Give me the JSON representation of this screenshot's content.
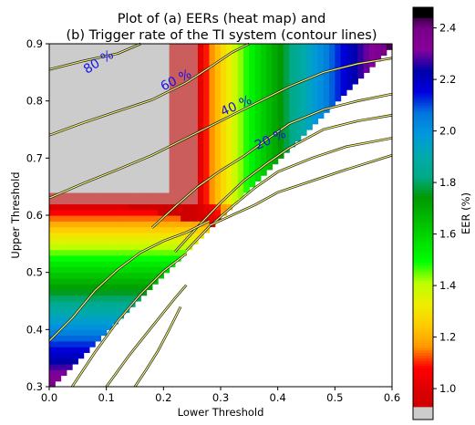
{
  "chart_data": {
    "type": "heatmap",
    "title": [
      "Plot of (a) EERs (heat map) and",
      "(b) Trigger rate of the TI system (contour lines)"
    ],
    "xlabel": "Lower Threshold",
    "ylabel": "Upper Threshold",
    "xlim": [
      0.0,
      0.6
    ],
    "ylim": [
      0.3,
      0.9
    ],
    "xticks": [
      0.0,
      0.1,
      0.2,
      0.3,
      0.4,
      0.5,
      0.6
    ],
    "xtick_labels": [
      "0.0",
      "0.1",
      "0.2",
      "0.3",
      "0.4",
      "0.5",
      "0.6"
    ],
    "yticks": [
      0.3,
      0.4,
      0.5,
      0.6,
      0.7,
      0.8,
      0.9
    ],
    "ytick_labels": [
      "0.3",
      "0.4",
      "0.5",
      "0.6",
      "0.7",
      "0.8",
      "0.9"
    ],
    "colorbar": {
      "label": "EER (%)",
      "range": [
        0.88,
        2.48
      ],
      "ticks": [
        1.0,
        1.2,
        1.4,
        1.6,
        1.8,
        2.0,
        2.2,
        2.4
      ],
      "tick_labels": [
        "1.0",
        "1.2",
        "1.4",
        "1.6",
        "1.8",
        "2.0",
        "2.2",
        "2.4"
      ],
      "colormap": "nipy_spectral"
    },
    "valid_region": "upper threshold > lower threshold + 0.3",
    "contours": [
      {
        "label": "80 %",
        "level": 80,
        "points": [
          [
            0.0,
            0.855
          ],
          [
            0.06,
            0.87
          ],
          [
            0.12,
            0.883
          ],
          [
            0.16,
            0.9
          ]
        ]
      },
      {
        "label": "60 %",
        "level": 60,
        "points": [
          [
            0.0,
            0.74
          ],
          [
            0.06,
            0.762
          ],
          [
            0.12,
            0.782
          ],
          [
            0.18,
            0.802
          ],
          [
            0.24,
            0.832
          ],
          [
            0.28,
            0.858
          ],
          [
            0.32,
            0.885
          ],
          [
            0.35,
            0.9
          ]
        ]
      },
      {
        "label": "40 %",
        "level": 40,
        "points": [
          [
            0.0,
            0.63
          ],
          [
            0.06,
            0.656
          ],
          [
            0.12,
            0.68
          ],
          [
            0.18,
            0.705
          ],
          [
            0.24,
            0.735
          ],
          [
            0.3,
            0.765
          ],
          [
            0.36,
            0.795
          ],
          [
            0.42,
            0.825
          ],
          [
            0.48,
            0.85
          ],
          [
            0.54,
            0.865
          ],
          [
            0.6,
            0.875
          ]
        ]
      },
      {
        "label": "20 %",
        "level": 20,
        "points": [
          [
            0.18,
            0.578
          ],
          [
            0.22,
            0.615
          ],
          [
            0.26,
            0.65
          ],
          [
            0.3,
            0.678
          ],
          [
            0.34,
            0.703
          ],
          [
            0.38,
            0.732
          ],
          [
            0.42,
            0.76
          ],
          [
            0.48,
            0.785
          ],
          [
            0.54,
            0.8
          ],
          [
            0.6,
            0.812
          ]
        ]
      },
      {
        "level": null,
        "points": [
          [
            0.22,
            0.536
          ],
          [
            0.26,
            0.58
          ],
          [
            0.3,
            0.622
          ],
          [
            0.34,
            0.66
          ],
          [
            0.38,
            0.69
          ],
          [
            0.42,
            0.718
          ],
          [
            0.48,
            0.75
          ],
          [
            0.54,
            0.765
          ],
          [
            0.6,
            0.775
          ]
        ]
      },
      {
        "level": null,
        "points": [
          [
            0.24,
            0.538
          ],
          [
            0.28,
            0.58
          ],
          [
            0.32,
            0.615
          ],
          [
            0.36,
            0.648
          ],
          [
            0.4,
            0.676
          ],
          [
            0.46,
            0.7
          ],
          [
            0.52,
            0.72
          ],
          [
            0.6,
            0.735
          ]
        ]
      },
      {
        "level": null,
        "points": [
          [
            0.28,
            0.582
          ],
          [
            0.32,
            0.6
          ],
          [
            0.36,
            0.618
          ],
          [
            0.4,
            0.64
          ],
          [
            0.46,
            0.66
          ],
          [
            0.52,
            0.68
          ],
          [
            0.6,
            0.705
          ]
        ]
      },
      {
        "level": null,
        "points": [
          [
            0.0,
            0.38
          ],
          [
            0.04,
            0.42
          ],
          [
            0.08,
            0.468
          ],
          [
            0.12,
            0.505
          ],
          [
            0.16,
            0.535
          ],
          [
            0.2,
            0.555
          ],
          [
            0.24,
            0.57
          ],
          [
            0.28,
            0.59
          ]
        ]
      },
      {
        "level": null,
        "points": [
          [
            0.04,
            0.3
          ],
          [
            0.08,
            0.36
          ],
          [
            0.12,
            0.415
          ],
          [
            0.16,
            0.462
          ],
          [
            0.2,
            0.502
          ],
          [
            0.24,
            0.533
          ]
        ]
      },
      {
        "level": null,
        "points": [
          [
            0.1,
            0.3
          ],
          [
            0.14,
            0.355
          ],
          [
            0.18,
            0.405
          ],
          [
            0.22,
            0.455
          ],
          [
            0.24,
            0.478
          ]
        ]
      },
      {
        "level": null,
        "points": [
          [
            0.15,
            0.3
          ],
          [
            0.17,
            0.33
          ],
          [
            0.19,
            0.362
          ],
          [
            0.21,
            0.4
          ],
          [
            0.23,
            0.44
          ]
        ]
      }
    ]
  }
}
